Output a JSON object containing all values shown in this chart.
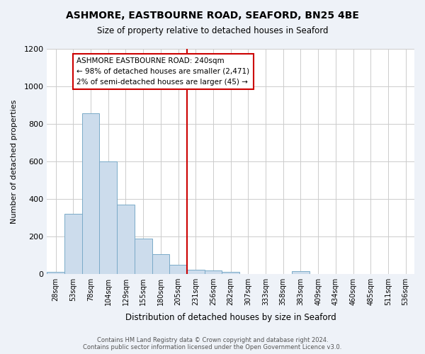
{
  "title": "ASHMORE, EASTBOURNE ROAD, SEAFORD, BN25 4BE",
  "subtitle": "Size of property relative to detached houses in Seaford",
  "xlabel": "Distribution of detached houses by size in Seaford",
  "ylabel": "Number of detached properties",
  "bar_values": [
    10,
    318,
    855,
    600,
    370,
    188,
    105,
    47,
    20,
    18,
    10,
    0,
    0,
    0,
    12,
    0,
    0,
    0,
    0,
    0,
    0
  ],
  "bin_labels": [
    "28sqm",
    "53sqm",
    "78sqm",
    "104sqm",
    "129sqm",
    "155sqm",
    "180sqm",
    "205sqm",
    "231sqm",
    "256sqm",
    "282sqm",
    "307sqm",
    "333sqm",
    "358sqm",
    "383sqm",
    "409sqm",
    "434sqm",
    "460sqm",
    "485sqm",
    "511sqm",
    "536sqm"
  ],
  "bar_color": "#ccdcec",
  "bar_edgecolor": "#7aaac8",
  "vline_x_index": 8,
  "vline_color": "#cc0000",
  "annotation_box_text": "ASHMORE EASTBOURNE ROAD: 240sqm\n← 98% of detached houses are smaller (2,471)\n2% of semi-detached houses are larger (45) →",
  "annotation_box_facecolor": "#ffffff",
  "annotation_box_edgecolor": "#cc0000",
  "ylim": [
    0,
    1200
  ],
  "yticks": [
    0,
    200,
    400,
    600,
    800,
    1000,
    1200
  ],
  "footer_text": "Contains HM Land Registry data © Crown copyright and database right 2024.\nContains public sector information licensed under the Open Government Licence v3.0.",
  "background_color": "#eef2f8",
  "plot_background": "#ffffff",
  "grid_color": "#cccccc"
}
